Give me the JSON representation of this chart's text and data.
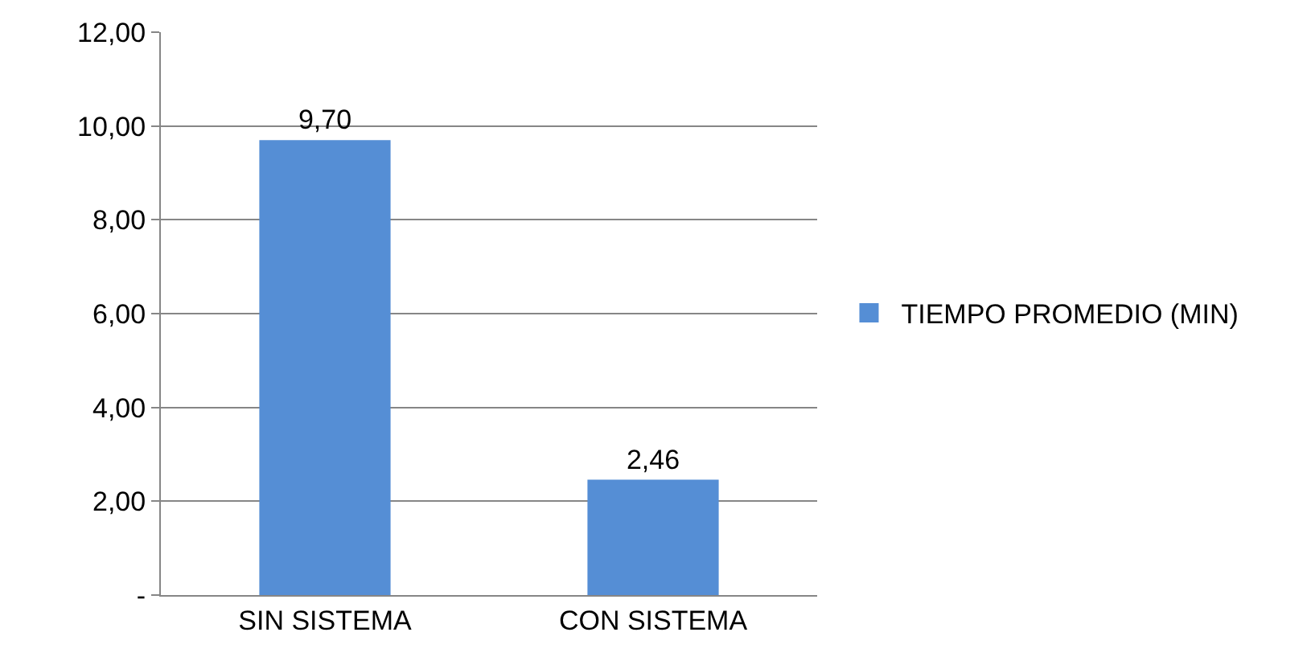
{
  "chart_data": {
    "type": "bar",
    "categories": [
      "SIN SISTEMA",
      "CON SISTEMA"
    ],
    "series": [
      {
        "name": "TIEMPO PROMEDIO (MIN)",
        "color": "#558ed5",
        "values": [
          9.7,
          2.46
        ],
        "value_labels": [
          "9,70",
          "2,46"
        ]
      }
    ],
    "ylim": [
      0,
      12
    ],
    "yticks": [
      {
        "value": 0,
        "label": "-"
      },
      {
        "value": 2,
        "label": "2,00"
      },
      {
        "value": 4,
        "label": "4,00"
      },
      {
        "value": 6,
        "label": "6,00"
      },
      {
        "value": 8,
        "label": "8,00"
      },
      {
        "value": 10,
        "label": "10,00"
      },
      {
        "value": 12,
        "label": "12,00"
      }
    ],
    "grid": "y",
    "legend": "right"
  }
}
